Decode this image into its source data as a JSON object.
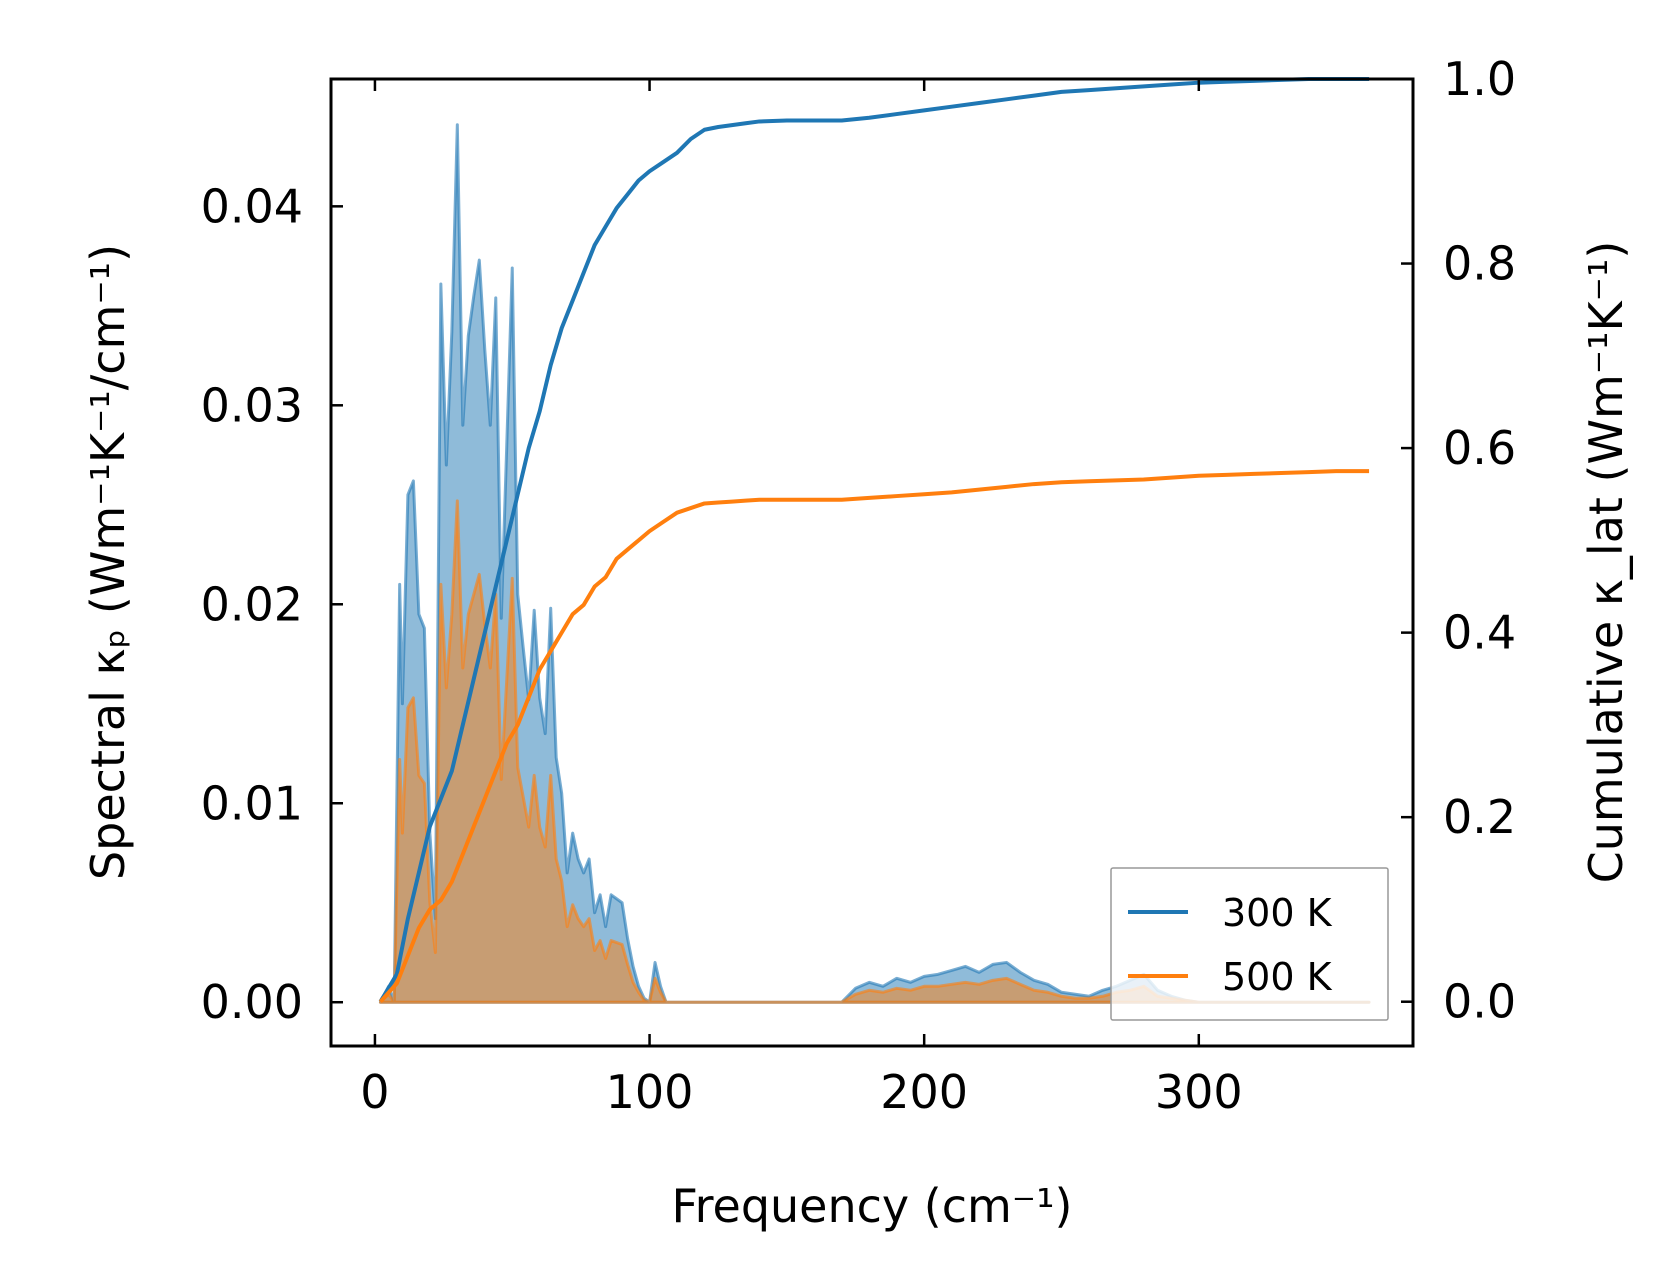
{
  "chart_data": {
    "type": "line",
    "xlabel": "Frequency (cm⁻¹)",
    "ylabel_left": "Spectral κₚ (Wm⁻¹K⁻¹/cm⁻¹)",
    "ylabel_right": "Cumulative κ_lat (Wm⁻¹K⁻¹)",
    "xlim": [
      -16,
      378
    ],
    "ylim_left": [
      -0.0022,
      0.0464
    ],
    "ylim_right": [
      -0.048,
      1.0
    ],
    "xticks": [
      0,
      100,
      200,
      300
    ],
    "xtick_labels": [
      "0",
      "100",
      "200",
      "300"
    ],
    "yticks_left": [
      0.0,
      0.01,
      0.02,
      0.03,
      0.04
    ],
    "ytick_labels_left": [
      "0.00",
      "0.01",
      "0.02",
      "0.03",
      "0.04"
    ],
    "yticks_right": [
      0.0,
      0.2,
      0.4,
      0.6,
      0.8,
      1.0
    ],
    "ytick_labels_right": [
      "0.0",
      "0.2",
      "0.4",
      "0.6",
      "0.8",
      "1.0"
    ],
    "legend_position": "bottom-right",
    "series": [
      {
        "name": "300 K",
        "color": "#1f77b4",
        "spectral": {
          "x": [
            2,
            5,
            7,
            9,
            10,
            12,
            14,
            16,
            18,
            20,
            22,
            24,
            26,
            28,
            30,
            32,
            34,
            36,
            38,
            40,
            42,
            44,
            46,
            48,
            50,
            52,
            54,
            56,
            58,
            60,
            62,
            64,
            66,
            68,
            70,
            72,
            74,
            76,
            78,
            80,
            82,
            84,
            86,
            88,
            90,
            92,
            94,
            96,
            98,
            100,
            102,
            104,
            106,
            108,
            110,
            112,
            114,
            116,
            118,
            120,
            122,
            124,
            126,
            128,
            130,
            132,
            134,
            136,
            138,
            140,
            145,
            150,
            155,
            160,
            165,
            170,
            175,
            180,
            185,
            190,
            195,
            200,
            205,
            210,
            215,
            220,
            225,
            230,
            235,
            240,
            245,
            250,
            255,
            260,
            265,
            270,
            275,
            280,
            285,
            290,
            295,
            300,
            310,
            320,
            330,
            340,
            350,
            362
          ],
          "y": [
            0,
            0.0008,
            0,
            0.021,
            0.015,
            0.0255,
            0.0262,
            0.0195,
            0.0188,
            0.0085,
            0.0042,
            0.0361,
            0.027,
            0.0337,
            0.0441,
            0.029,
            0.0335,
            0.0355,
            0.0373,
            0.0328,
            0.029,
            0.0354,
            0.0193,
            0.028,
            0.0369,
            0.0205,
            0.0178,
            0.0152,
            0.0197,
            0.0153,
            0.0135,
            0.0198,
            0.0123,
            0.0105,
            0.0065,
            0.0085,
            0.0072,
            0.0065,
            0.0072,
            0.0045,
            0.0054,
            0.0038,
            0.0054,
            0.0052,
            0.005,
            0.0032,
            0.0018,
            0.0008,
            0.0002,
            0.0,
            0.002,
            0.0008,
            0.0,
            0.0,
            0.0,
            0.0,
            0.0,
            0.0,
            0.0,
            0.0,
            0.0,
            0.0,
            0.0,
            0.0,
            0.0,
            0.0,
            0.0,
            0.0,
            0.0,
            0.0,
            0.0,
            0.0,
            0.0,
            0.0,
            0.0,
            0.0,
            0.0007,
            0.001,
            0.0008,
            0.0012,
            0.001,
            0.0013,
            0.0014,
            0.0016,
            0.0018,
            0.0015,
            0.0019,
            0.002,
            0.0015,
            0.0011,
            0.0009,
            0.0005,
            0.0004,
            0.0003,
            0.0006,
            0.0008,
            0.0011,
            0.0014,
            0.0006,
            0.0003,
            0.0001,
            0.0,
            0.0,
            0.0,
            0.0,
            0.0,
            0.0,
            0.0
          ]
        },
        "cumulative": {
          "x": [
            2,
            8,
            12,
            16,
            20,
            24,
            28,
            32,
            36,
            40,
            44,
            48,
            52,
            56,
            60,
            64,
            68,
            72,
            76,
            80,
            84,
            88,
            92,
            96,
            100,
            105,
            110,
            115,
            120,
            125,
            130,
            135,
            140,
            150,
            160,
            170,
            180,
            190,
            200,
            210,
            220,
            230,
            240,
            250,
            260,
            270,
            280,
            290,
            300,
            310,
            320,
            330,
            340,
            350,
            362
          ],
          "y": [
            0,
            0.03,
            0.09,
            0.14,
            0.19,
            0.22,
            0.25,
            0.3,
            0.35,
            0.4,
            0.45,
            0.5,
            0.55,
            0.6,
            0.64,
            0.69,
            0.73,
            0.76,
            0.79,
            0.82,
            0.84,
            0.86,
            0.875,
            0.89,
            0.9,
            0.91,
            0.92,
            0.935,
            0.945,
            0.948,
            0.95,
            0.952,
            0.954,
            0.955,
            0.955,
            0.955,
            0.958,
            0.962,
            0.966,
            0.97,
            0.974,
            0.978,
            0.982,
            0.986,
            0.988,
            0.99,
            0.992,
            0.994,
            0.996,
            0.997,
            0.998,
            0.999,
            1.0,
            1.0,
            1.0
          ]
        }
      },
      {
        "name": "500 K",
        "color": "#ff7f0e",
        "spectral": {
          "x": [
            2,
            5,
            7,
            9,
            10,
            12,
            14,
            16,
            18,
            20,
            22,
            24,
            26,
            28,
            30,
            32,
            34,
            36,
            38,
            40,
            42,
            44,
            46,
            48,
            50,
            52,
            54,
            56,
            58,
            60,
            62,
            64,
            66,
            68,
            70,
            72,
            74,
            76,
            78,
            80,
            82,
            84,
            86,
            88,
            90,
            92,
            94,
            96,
            98,
            100,
            102,
            104,
            106,
            108,
            110,
            112,
            114,
            116,
            118,
            120,
            122,
            124,
            126,
            128,
            130,
            132,
            134,
            136,
            138,
            140,
            145,
            150,
            155,
            160,
            165,
            170,
            175,
            180,
            185,
            190,
            195,
            200,
            205,
            210,
            215,
            220,
            225,
            230,
            235,
            240,
            245,
            250,
            255,
            260,
            265,
            270,
            275,
            280,
            285,
            290,
            295,
            300,
            310,
            320,
            330,
            340,
            350,
            362
          ],
          "y": [
            0,
            0.0004,
            0,
            0.0122,
            0.0085,
            0.0148,
            0.0153,
            0.0114,
            0.011,
            0.005,
            0.0025,
            0.021,
            0.0158,
            0.0195,
            0.0252,
            0.0168,
            0.0195,
            0.0205,
            0.0215,
            0.019,
            0.0168,
            0.0205,
            0.0112,
            0.0162,
            0.0213,
            0.0118,
            0.0103,
            0.0088,
            0.0114,
            0.0088,
            0.0078,
            0.0114,
            0.0072,
            0.0061,
            0.0038,
            0.0049,
            0.0042,
            0.0038,
            0.0042,
            0.0026,
            0.0031,
            0.0022,
            0.0031,
            0.003,
            0.0029,
            0.0019,
            0.001,
            0.0005,
            0.0001,
            0.0,
            0.0012,
            0.0005,
            0.0,
            0.0,
            0.0,
            0.0,
            0.0,
            0.0,
            0.0,
            0.0,
            0.0,
            0.0,
            0.0,
            0.0,
            0.0,
            0.0,
            0.0,
            0.0,
            0.0,
            0.0,
            0.0,
            0.0,
            0.0,
            0.0,
            0.0,
            0.0,
            0.0004,
            0.0006,
            0.0005,
            0.0007,
            0.0006,
            0.0008,
            0.0008,
            0.0009,
            0.001,
            0.0009,
            0.0011,
            0.0012,
            0.0009,
            0.0006,
            0.0005,
            0.0003,
            0.0002,
            0.0002,
            0.0003,
            0.0005,
            0.0006,
            0.0008,
            0.0003,
            0.0002,
            0.0001,
            0.0,
            0.0,
            0.0,
            0.0,
            0.0,
            0.0,
            0.0
          ]
        },
        "cumulative": {
          "x": [
            2,
            8,
            12,
            16,
            20,
            24,
            28,
            32,
            36,
            40,
            44,
            48,
            52,
            56,
            60,
            64,
            68,
            72,
            76,
            80,
            84,
            88,
            92,
            96,
            100,
            105,
            110,
            115,
            120,
            125,
            130,
            135,
            140,
            150,
            160,
            170,
            180,
            190,
            200,
            210,
            220,
            230,
            240,
            250,
            260,
            270,
            280,
            290,
            300,
            310,
            320,
            330,
            340,
            350,
            362
          ],
          "y": [
            0,
            0.02,
            0.05,
            0.08,
            0.1,
            0.11,
            0.13,
            0.16,
            0.19,
            0.22,
            0.25,
            0.28,
            0.3,
            0.33,
            0.36,
            0.38,
            0.4,
            0.42,
            0.43,
            0.45,
            0.46,
            0.48,
            0.49,
            0.5,
            0.51,
            0.52,
            0.53,
            0.535,
            0.54,
            0.541,
            0.542,
            0.543,
            0.544,
            0.544,
            0.544,
            0.544,
            0.546,
            0.548,
            0.55,
            0.552,
            0.555,
            0.558,
            0.561,
            0.563,
            0.564,
            0.565,
            0.566,
            0.568,
            0.57,
            0.571,
            0.572,
            0.573,
            0.574,
            0.575,
            0.575
          ]
        }
      }
    ]
  }
}
